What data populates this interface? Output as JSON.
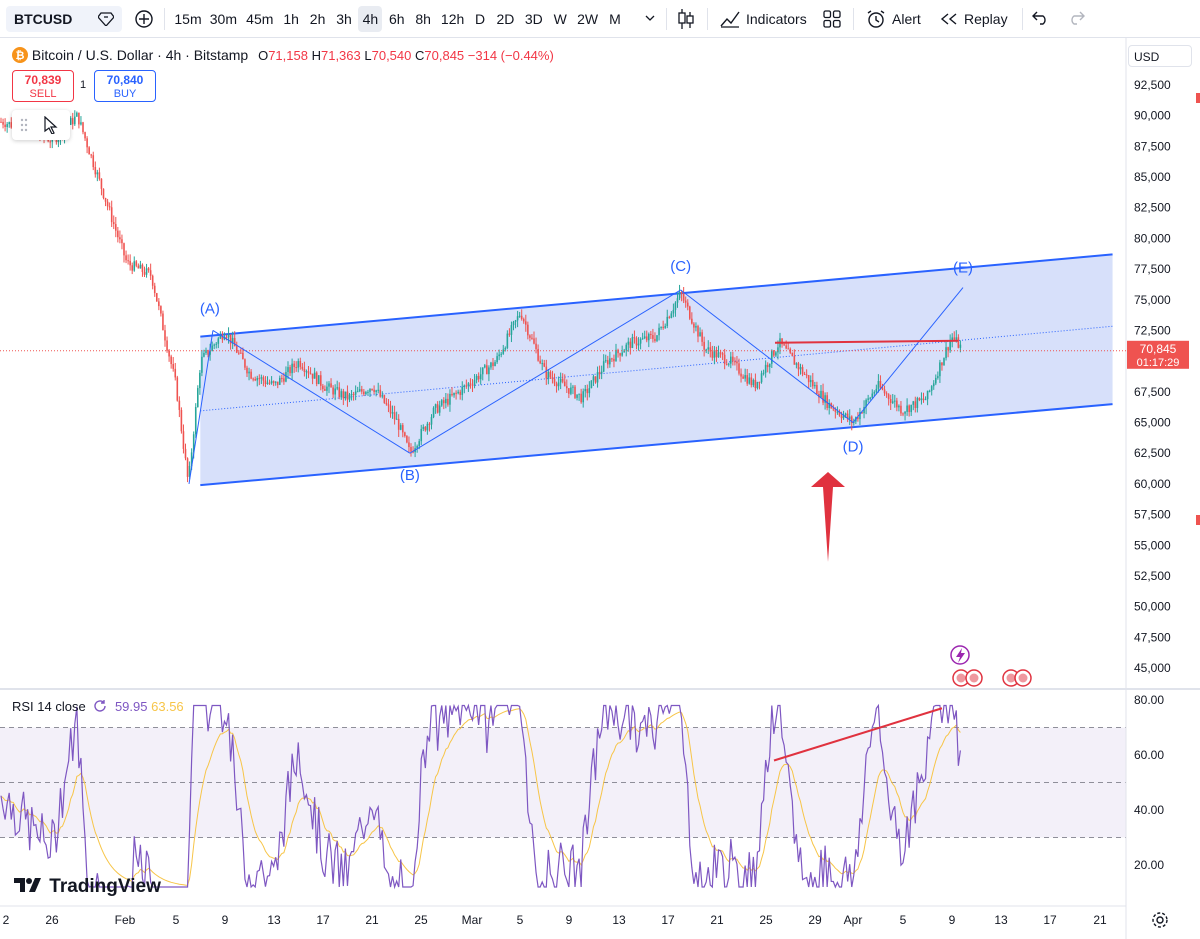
{
  "toolbar": {
    "symbol": "BTCUSD",
    "intervals": [
      "15m",
      "30m",
      "45m",
      "1h",
      "2h",
      "3h",
      "4h",
      "6h",
      "8h",
      "12h",
      "D",
      "2D",
      "3D",
      "W",
      "2W",
      "M"
    ],
    "active_interval": "4h",
    "indicators_label": "Indicators",
    "alert_label": "Alert",
    "replay_label": "Replay"
  },
  "legend": {
    "title": "Bitcoin / U.S. Dollar · 4h · Bitstamp",
    "open_label": "O",
    "open": "71,158",
    "high_label": "H",
    "high": "71,363",
    "low_label": "L",
    "low": "70,540",
    "close_label": "C",
    "close": "70,845",
    "change": "−314 (−0.44%)"
  },
  "trade": {
    "sell_price": "70,839",
    "sell_label": "SELL",
    "spread": "1",
    "buy_price": "70,840",
    "buy_label": "BUY"
  },
  "price_axis": {
    "currency": "USD",
    "ticks": [
      "92,500",
      "90,000",
      "87,500",
      "85,000",
      "82,500",
      "80,000",
      "77,500",
      "75,000",
      "72,500",
      "70,000",
      "67,500",
      "65,000",
      "62,500",
      "60,000",
      "57,500",
      "55,000",
      "52,500",
      "50,000",
      "47,500",
      "45,000"
    ],
    "last_price": "70,845",
    "countdown": "01:17:29"
  },
  "rsi": {
    "label": "RSI 14 close",
    "rsi_value": "59.95",
    "ma_value": "63.56",
    "ticks": [
      "80.00",
      "60.00",
      "40.00",
      "20.00"
    ]
  },
  "time_axis": {
    "ticks": [
      "2",
      "26",
      "Feb",
      "5",
      "9",
      "13",
      "17",
      "21",
      "25",
      "Mar",
      "5",
      "9",
      "13",
      "17",
      "21",
      "25",
      "29",
      "Apr",
      "5",
      "9",
      "13",
      "17",
      "21"
    ]
  },
  "annotations": {
    "wave_labels": [
      "(A)",
      "(B)",
      "(C)",
      "(D)",
      "(E)"
    ]
  },
  "brand": "TradingView",
  "colors": {
    "up": "#26a69a",
    "down": "#ef5350",
    "channel_line": "#2962ff",
    "channel_fill": "#c9d6f8",
    "annotation_red": "#e0323f",
    "rsi_line": "#7e57c2",
    "rsi_ma": "#f7c548",
    "wave_label": "#2962ff"
  },
  "chart_data": {
    "type": "candlestick",
    "symbol": "BTCUSD",
    "interval": "4h",
    "ylim": [
      43750,
      93750
    ],
    "waypoints": [
      {
        "date": "Jan 22",
        "price": 89500
      },
      {
        "date": "Jan 26",
        "price": 88000
      },
      {
        "date": "Jan 28",
        "price": 90000
      },
      {
        "date": "Jan 30",
        "price": 84000
      },
      {
        "date": "Feb 1",
        "price": 78000
      },
      {
        "date": "Feb 3",
        "price": 77000
      },
      {
        "date": "Feb 5",
        "price": 68000
      },
      {
        "date": "Feb 6",
        "price": 60000
      },
      {
        "date": "Feb 7",
        "price": 70000
      },
      {
        "date": "Feb 9",
        "price": 72500
      },
      {
        "date": "Feb 11",
        "price": 69000
      },
      {
        "date": "Feb 13",
        "price": 68000
      },
      {
        "date": "Feb 15",
        "price": 70000
      },
      {
        "date": "Feb 17",
        "price": 68000
      },
      {
        "date": "Feb 19",
        "price": 67000
      },
      {
        "date": "Feb 21",
        "price": 68000
      },
      {
        "date": "Feb 23",
        "price": 65000
      },
      {
        "date": "Feb 24",
        "price": 62500
      },
      {
        "date": "Feb 26",
        "price": 66000
      },
      {
        "date": "Feb 28",
        "price": 67500
      },
      {
        "date": "Mar 2",
        "price": 70000
      },
      {
        "date": "Mar 4",
        "price": 74000
      },
      {
        "date": "Mar 6",
        "price": 69000
      },
      {
        "date": "Mar 9",
        "price": 67000
      },
      {
        "date": "Mar 11",
        "price": 70000
      },
      {
        "date": "Mar 13",
        "price": 71500
      },
      {
        "date": "Mar 15",
        "price": 72000
      },
      {
        "date": "Mar 17",
        "price": 75500
      },
      {
        "date": "Mar 19",
        "price": 71000
      },
      {
        "date": "Mar 21",
        "price": 70000
      },
      {
        "date": "Mar 23",
        "price": 68000
      },
      {
        "date": "Mar 25",
        "price": 71500
      },
      {
        "date": "Mar 27",
        "price": 69000
      },
      {
        "date": "Mar 29",
        "price": 66500
      },
      {
        "date": "Mar 31",
        "price": 65000
      },
      {
        "date": "Apr 2",
        "price": 68000
      },
      {
        "date": "Apr 4",
        "price": 66000
      },
      {
        "date": "Apr 6",
        "price": 67000
      },
      {
        "date": "Apr 8",
        "price": 72000
      },
      {
        "date": "Apr 9",
        "price": 70845
      }
    ],
    "channel": {
      "upper": [
        {
          "date": "Feb 6",
          "price": 72000
        },
        {
          "date": "Apr 21",
          "price": 78700
        }
      ],
      "lower": [
        {
          "date": "Feb 6",
          "price": 59900
        },
        {
          "date": "Apr 21",
          "price": 66500
        }
      ]
    },
    "waves": [
      {
        "label": "(A)",
        "date": "Feb 8",
        "price": 72500
      },
      {
        "label": "(B)",
        "date": "Feb 24",
        "price": 62500
      },
      {
        "label": "(C)",
        "date": "Mar 17",
        "price": 75800
      },
      {
        "label": "(D)",
        "date": "Mar 31",
        "price": 65000
      },
      {
        "label": "(E)",
        "date": "Apr 9",
        "price": 76000
      }
    ],
    "horizontal_level": 71500,
    "rsi": {
      "period": 14,
      "last": 59.95,
      "ma_last": 63.56,
      "levels": [
        70,
        50,
        30
      ],
      "ylim": [
        10,
        85
      ]
    }
  }
}
